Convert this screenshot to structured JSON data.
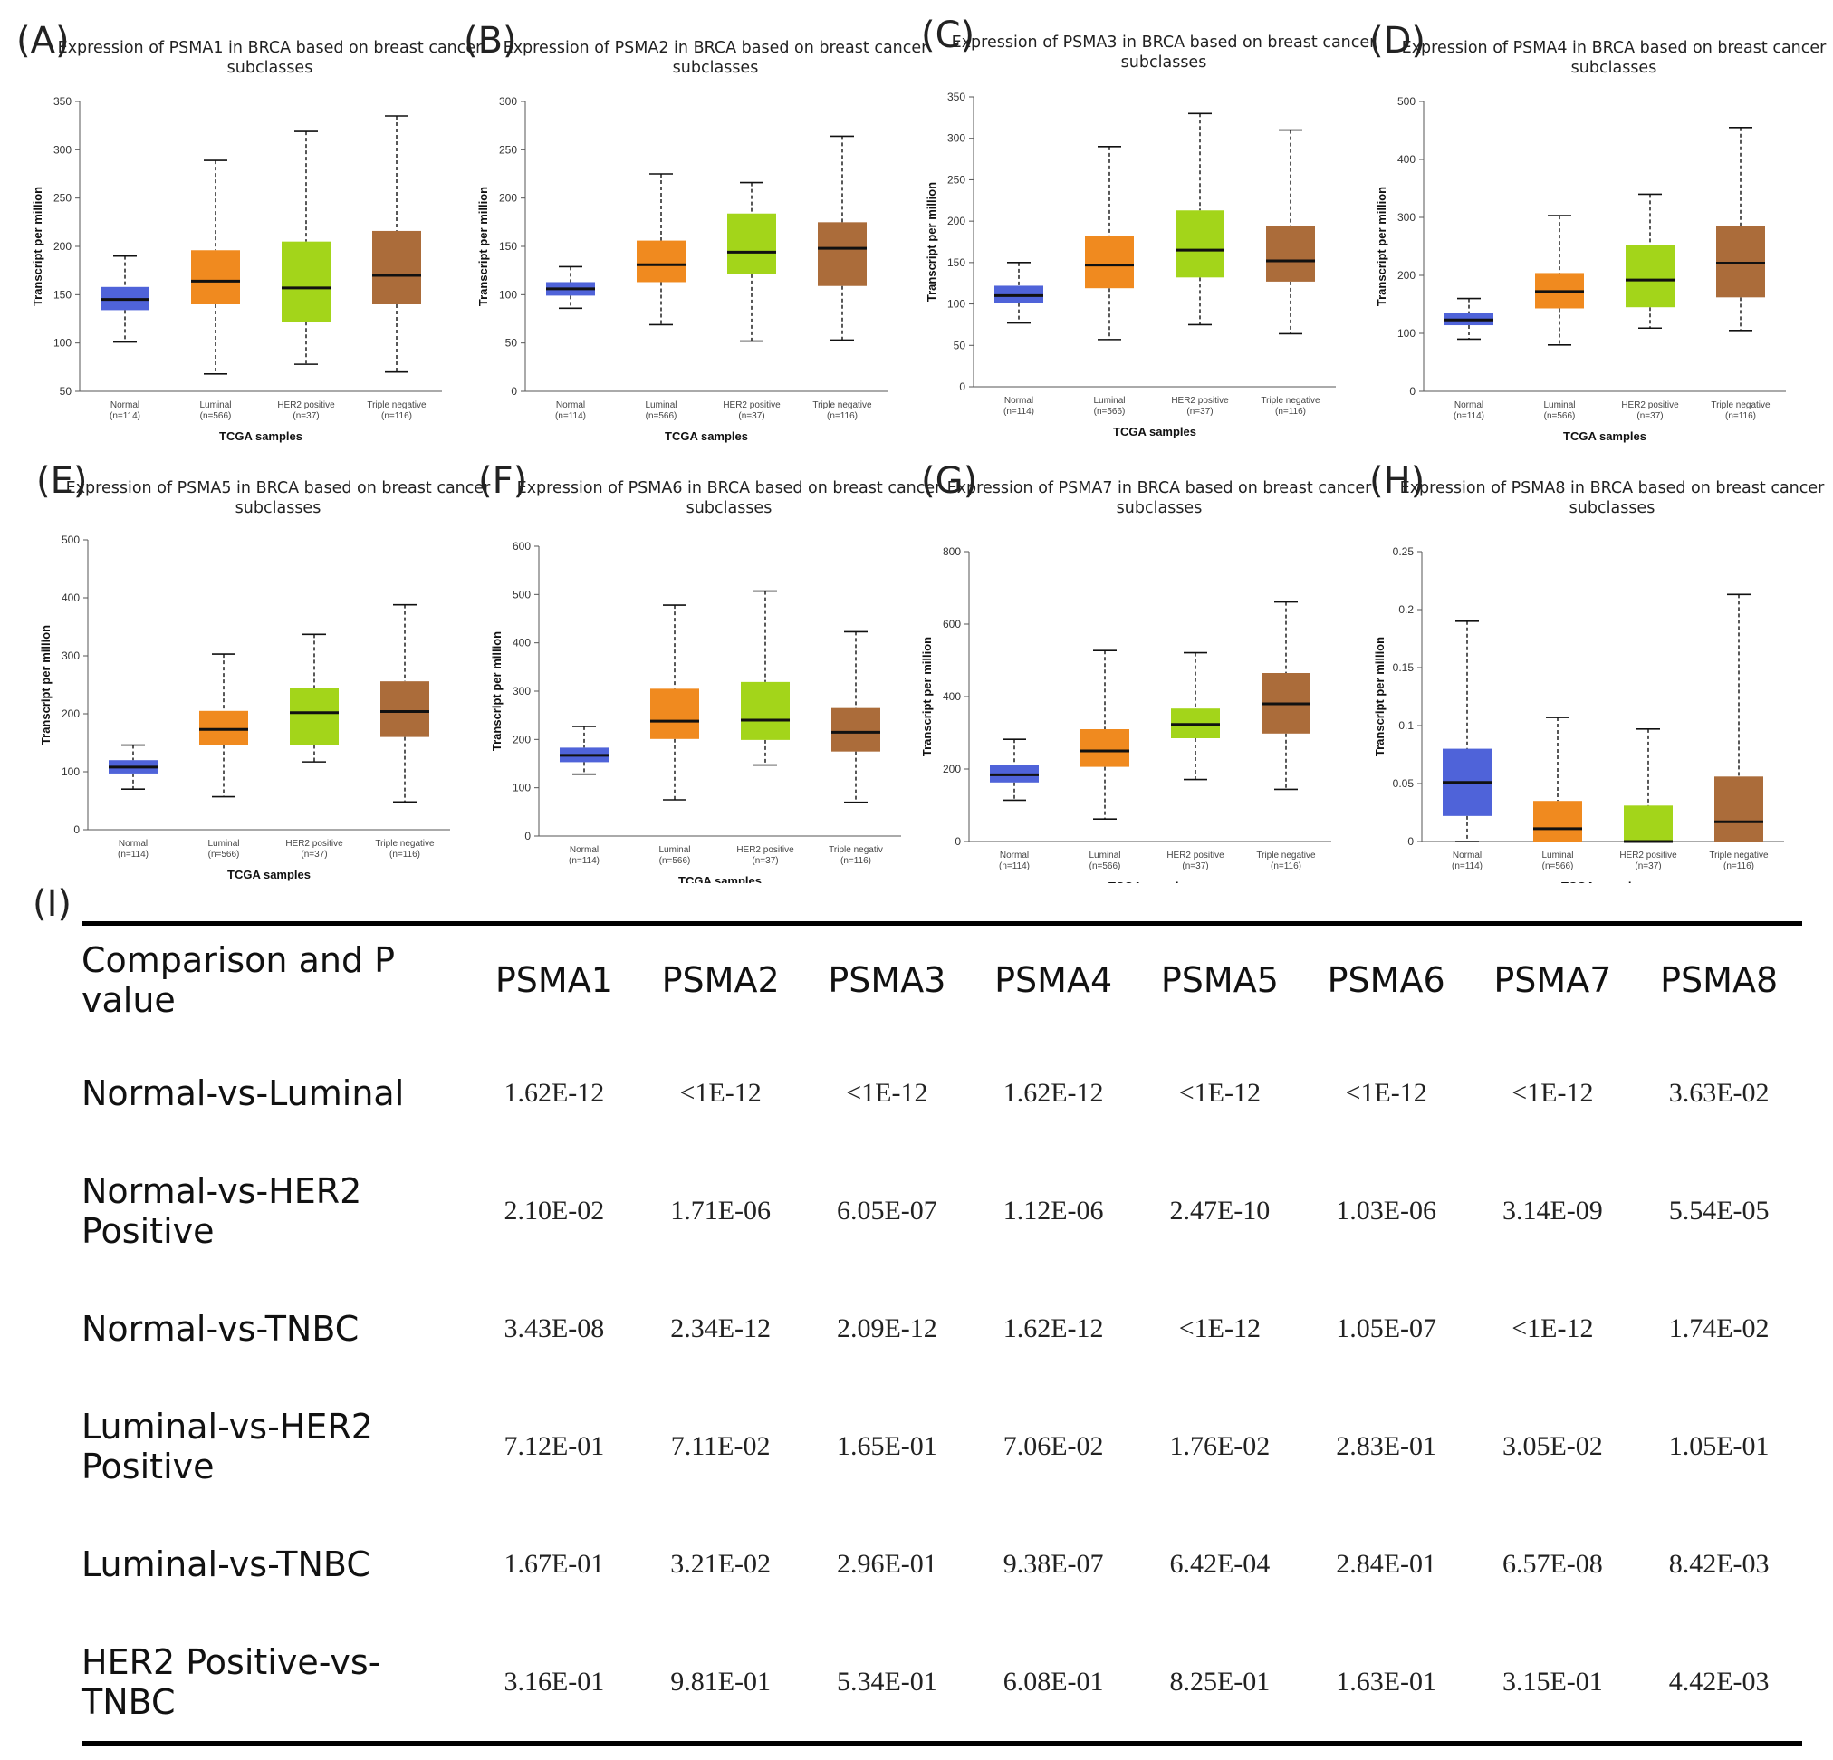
{
  "chart_data": [
    {
      "type": "boxplot",
      "letter": "(A)",
      "title_line1": "Expression of PSMA1 in BRCA based on breast cancer",
      "title_line2": "subclasses",
      "ylabel": "Transcript per million",
      "xlabel": "TCGA samples",
      "ylim": [
        50,
        350
      ],
      "yticks": [
        "50",
        "100",
        "150",
        "200",
        "250",
        "300",
        "350"
      ],
      "categories": [
        "Normal",
        "Luminal",
        "HER2 positive",
        "Triple negative"
      ],
      "counts": [
        "(n=114)",
        "(n=566)",
        "(n=37)",
        "(n=116)"
      ],
      "boxes": [
        {
          "min": 101,
          "q1": 134,
          "median": 145,
          "q3": 158,
          "max": 190
        },
        {
          "min": 68,
          "q1": 140,
          "median": 164,
          "q3": 196,
          "max": 289
        },
        {
          "min": 78,
          "q1": 122,
          "median": 157,
          "q3": 205,
          "max": 319
        },
        {
          "min": 70,
          "q1": 140,
          "median": 170,
          "q3": 216,
          "max": 335
        }
      ]
    },
    {
      "type": "boxplot",
      "letter": "(B)",
      "title_line1": "Expression of PSMA2 in BRCA based on breast cancer",
      "title_line2": "subclasses",
      "ylabel": "Transcript per million",
      "xlabel": "TCGA samples",
      "ylim": [
        0,
        300
      ],
      "yticks": [
        "0",
        "50",
        "100",
        "150",
        "200",
        "250",
        "300"
      ],
      "categories": [
        "Normal",
        "Luminal",
        "HER2 positive",
        "Triple negative"
      ],
      "counts": [
        "(n=114)",
        "(n=566)",
        "(n=37)",
        "(n=116)"
      ],
      "boxes": [
        {
          "min": 86,
          "q1": 99,
          "median": 106,
          "q3": 113,
          "max": 129
        },
        {
          "min": 69,
          "q1": 113,
          "median": 131,
          "q3": 156,
          "max": 225
        },
        {
          "min": 52,
          "q1": 121,
          "median": 144,
          "q3": 184,
          "max": 216
        },
        {
          "min": 53,
          "q1": 109,
          "median": 148,
          "q3": 175,
          "max": 264
        }
      ]
    },
    {
      "type": "boxplot",
      "letter": "(C)",
      "title_line1": "Expression of PSMA3 in BRCA based on breast cancer",
      "title_line2": "subclasses",
      "ylabel": "Transcript per million",
      "xlabel": "TCGA samples",
      "ylim": [
        0,
        350
      ],
      "yticks": [
        "0",
        "50",
        "100",
        "150",
        "200",
        "250",
        "300",
        "350"
      ],
      "categories": [
        "Normal",
        "Luminal",
        "HER2 positive",
        "Triple negative"
      ],
      "counts": [
        "(n=114)",
        "(n=566)",
        "(n=37)",
        "(n=116)"
      ],
      "boxes": [
        {
          "min": 77,
          "q1": 101,
          "median": 110,
          "q3": 122,
          "max": 150
        },
        {
          "min": 57,
          "q1": 119,
          "median": 147,
          "q3": 182,
          "max": 290
        },
        {
          "min": 75,
          "q1": 132,
          "median": 165,
          "q3": 213,
          "max": 330
        },
        {
          "min": 64,
          "q1": 127,
          "median": 152,
          "q3": 194,
          "max": 310
        }
      ]
    },
    {
      "type": "boxplot",
      "letter": "(D)",
      "title_line1": "Expression of PSMA4 in BRCA based on breast cancer",
      "title_line2": "subclasses",
      "ylabel": "Transcript per million",
      "xlabel": "TCGA samples",
      "ylim": [
        0,
        500
      ],
      "yticks": [
        "0",
        "100",
        "200",
        "300",
        "400",
        "500"
      ],
      "categories": [
        "Normal",
        "Luminal",
        "HER2 positive",
        "Triple negative"
      ],
      "counts": [
        "(n=114)",
        "(n=566)",
        "(n=37)",
        "(n=116)"
      ],
      "boxes": [
        {
          "min": 90,
          "q1": 114,
          "median": 123,
          "q3": 135,
          "max": 160
        },
        {
          "min": 80,
          "q1": 143,
          "median": 172,
          "q3": 204,
          "max": 303
        },
        {
          "min": 109,
          "q1": 145,
          "median": 192,
          "q3": 253,
          "max": 340
        },
        {
          "min": 105,
          "q1": 162,
          "median": 221,
          "q3": 285,
          "max": 455
        }
      ]
    },
    {
      "type": "boxplot",
      "letter": "(E)",
      "title_line1": "Expression of PSMA5 in BRCA based on breast cancer",
      "title_line2": "subclasses",
      "ylabel": "Transcript per million",
      "xlabel": "TCGA samples",
      "ylim": [
        0,
        500
      ],
      "yticks": [
        "0",
        "100",
        "200",
        "300",
        "400",
        "500"
      ],
      "categories": [
        "Normal",
        "Luminal",
        "HER2 positive",
        "Triple negative"
      ],
      "counts": [
        "(n=114)",
        "(n=566)",
        "(n=37)",
        "(n=116)"
      ],
      "boxes": [
        {
          "min": 70,
          "q1": 97,
          "median": 108,
          "q3": 120,
          "max": 146
        },
        {
          "min": 57,
          "q1": 146,
          "median": 173,
          "q3": 205,
          "max": 303
        },
        {
          "min": 117,
          "q1": 146,
          "median": 202,
          "q3": 245,
          "max": 337
        },
        {
          "min": 48,
          "q1": 160,
          "median": 204,
          "q3": 256,
          "max": 388
        }
      ]
    },
    {
      "type": "boxplot",
      "letter": "(F)",
      "title_line1": "Expression of PSMA6 in BRCA based on breast cancer",
      "title_line2": "subclasses",
      "ylabel": "Transcript per million",
      "xlabel": "TCGA samples",
      "ylim": [
        0,
        600
      ],
      "yticks": [
        "0",
        "100",
        "200",
        "300",
        "400",
        "500",
        "600"
      ],
      "categories": [
        "Normal",
        "Luminal",
        "HER2 positive",
        "Triple negativ"
      ],
      "counts": [
        "(n=114)",
        "(n=566)",
        "(n=37)",
        "(n=116)"
      ],
      "boxes": [
        {
          "min": 128,
          "q1": 153,
          "median": 167,
          "q3": 183,
          "max": 227
        },
        {
          "min": 75,
          "q1": 201,
          "median": 238,
          "q3": 305,
          "max": 478
        },
        {
          "min": 147,
          "q1": 199,
          "median": 240,
          "q3": 319,
          "max": 507
        },
        {
          "min": 70,
          "q1": 175,
          "median": 215,
          "q3": 265,
          "max": 423
        }
      ]
    },
    {
      "type": "boxplot",
      "letter": "(G)",
      "title_line1": "Expression of PSMA7 in BRCA based on breast cancer",
      "title_line2": "subclasses",
      "ylabel": "Transcript per million",
      "xlabel": "TCGA samples",
      "ylim": [
        0,
        800
      ],
      "yticks": [
        "0",
        "200",
        "400",
        "600",
        "800"
      ],
      "categories": [
        "Normal",
        "Luminal",
        "HER2 positive",
        "Triple negative"
      ],
      "counts": [
        "(n=114)",
        "(n=566)",
        "(n=37)",
        "(n=116)"
      ],
      "boxes": [
        {
          "min": 114,
          "q1": 163,
          "median": 184,
          "q3": 210,
          "max": 282
        },
        {
          "min": 62,
          "q1": 206,
          "median": 250,
          "q3": 310,
          "max": 527
        },
        {
          "min": 171,
          "q1": 285,
          "median": 323,
          "q3": 367,
          "max": 521
        },
        {
          "min": 144,
          "q1": 298,
          "median": 380,
          "q3": 465,
          "max": 661
        }
      ]
    },
    {
      "type": "boxplot",
      "letter": "(H)",
      "title_line1": "Expression of PSMA8 in BRCA based on breast cancer",
      "title_line2": "subclasses",
      "ylabel": "Transcript per million",
      "xlabel": "TCGA samples",
      "ylim": [
        0,
        0.25
      ],
      "yticks": [
        "0",
        "0.05",
        "0.1",
        "0.15",
        "0.2",
        "0.25"
      ],
      "categories": [
        "Normal",
        "Luminal",
        "HER2 positive",
        "Triple negative"
      ],
      "counts": [
        "(n=114)",
        "(n=566)",
        "(n=37)",
        "(n=116)"
      ],
      "boxes": [
        {
          "min": 0,
          "q1": 0.022,
          "median": 0.051,
          "q3": 0.08,
          "max": 0.19
        },
        {
          "min": 0,
          "q1": 0,
          "median": 0.011,
          "q3": 0.035,
          "max": 0.107
        },
        {
          "min": 0,
          "q1": 0,
          "median": 0,
          "q3": 0.031,
          "max": 0.097
        },
        {
          "min": 0,
          "q1": 0,
          "median": 0.017,
          "q3": 0.056,
          "max": 0.213
        }
      ]
    }
  ],
  "box_colors": [
    "#4f63d9",
    "#f08a1f",
    "#a3d51a",
    "#ab6c3a"
  ],
  "median_color": "#111111",
  "pvalue_table": {
    "letter": "(I)",
    "headers": [
      "Comparison and P value",
      "PSMA1",
      "PSMA2",
      "PSMA3",
      "PSMA4",
      "PSMA5",
      "PSMA6",
      "PSMA7",
      "PSMA8"
    ],
    "rows": [
      [
        "Normal-vs-Luminal",
        "1.62E-12",
        "<1E-12",
        "<1E-12",
        "1.62E-12",
        "<1E-12",
        "<1E-12",
        "<1E-12",
        "3.63E-02"
      ],
      [
        "Normal-vs-HER2 Positive",
        "2.10E-02",
        "1.71E-06",
        "6.05E-07",
        "1.12E-06",
        "2.47E-10",
        "1.03E-06",
        "3.14E-09",
        "5.54E-05"
      ],
      [
        "Normal-vs-TNBC",
        "3.43E-08",
        "2.34E-12",
        "2.09E-12",
        "1.62E-12",
        "<1E-12",
        "1.05E-07",
        "<1E-12",
        "1.74E-02"
      ],
      [
        "Luminal-vs-HER2 Positive",
        "7.12E-01",
        "7.11E-02",
        "1.65E-01",
        "7.06E-02",
        "1.76E-02",
        "2.83E-01",
        "3.05E-02",
        "1.05E-01"
      ],
      [
        "Luminal-vs-TNBC",
        "1.67E-01",
        "3.21E-02",
        "2.96E-01",
        "9.38E-07",
        "6.42E-04",
        "2.84E-01",
        "6.57E-08",
        "8.42E-03"
      ],
      [
        "HER2 Positive-vs-TNBC",
        "3.16E-01",
        "9.81E-01",
        "5.34E-01",
        "6.08E-01",
        "8.25E-01",
        "1.63E-01",
        "3.15E-01",
        "4.42E-03"
      ]
    ]
  }
}
